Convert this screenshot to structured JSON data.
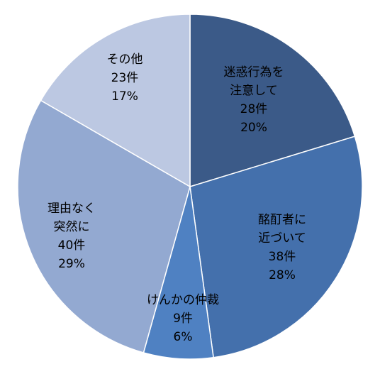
{
  "chart_data": {
    "type": "pie",
    "title": "",
    "start": "top",
    "direction": "clockwise",
    "slices": [
      {
        "label": "迷惑行為を\n注意して",
        "value": 28,
        "value_text": "28件",
        "percent": 20,
        "percent_text": "20%",
        "color": "#3b5a88"
      },
      {
        "label": "酩酊者に\n近づいて",
        "value": 38,
        "value_text": "38件",
        "percent": 28,
        "percent_text": "28%",
        "color": "#4470ac"
      },
      {
        "label": "けんかの仲裁",
        "value": 9,
        "value_text": "9件",
        "percent": 6,
        "percent_text": "6%",
        "color": "#4f81c2"
      },
      {
        "label": "理由なく\n突然に",
        "value": 40,
        "value_text": "40件",
        "percent": 29,
        "percent_text": "29%",
        "color": "#93a9d1"
      },
      {
        "label": "その他",
        "value": 23,
        "value_text": "23件",
        "percent": 17,
        "percent_text": "17%",
        "color": "#bcc8e2"
      }
    ]
  }
}
